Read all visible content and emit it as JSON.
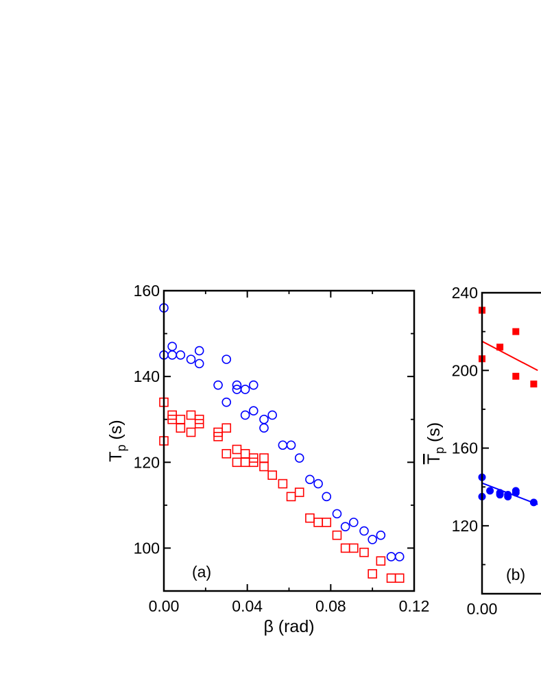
{
  "chart_data": [
    {
      "panel": "a",
      "type": "scatter",
      "panel_label": "(a)",
      "xlabel": "β (rad)",
      "ylabel_main": "T",
      "ylabel_sub": "p",
      "ylabel_unit": " (s)",
      "xlim": [
        0.0,
        0.12
      ],
      "ylim": [
        90,
        160
      ],
      "xticks": [
        "0.00",
        "0.04",
        "0.08",
        "0.12"
      ],
      "xtick_values": [
        0.0,
        0.04,
        0.08,
        0.12
      ],
      "yticks": [
        "100",
        "120",
        "140",
        "160"
      ],
      "ytick_values": [
        100,
        120,
        140,
        160
      ],
      "grid": false,
      "series": [
        {
          "marker": "open-circle",
          "color": "#0000ff",
          "points": [
            [
              0.0,
              156
            ],
            [
              0.0,
              145
            ],
            [
              0.004,
              147
            ],
            [
              0.004,
              145
            ],
            [
              0.008,
              145
            ],
            [
              0.013,
              144
            ],
            [
              0.017,
              146
            ],
            [
              0.017,
              143
            ],
            [
              0.026,
              138
            ],
            [
              0.03,
              144
            ],
            [
              0.03,
              134
            ],
            [
              0.035,
              138
            ],
            [
              0.035,
              137
            ],
            [
              0.039,
              137
            ],
            [
              0.039,
              131
            ],
            [
              0.043,
              138
            ],
            [
              0.043,
              132
            ],
            [
              0.048,
              130
            ],
            [
              0.048,
              128
            ],
            [
              0.052,
              131
            ],
            [
              0.057,
              124
            ],
            [
              0.061,
              124
            ],
            [
              0.065,
              121
            ],
            [
              0.07,
              116
            ],
            [
              0.074,
              115
            ],
            [
              0.078,
              112
            ],
            [
              0.083,
              108
            ],
            [
              0.087,
              105
            ],
            [
              0.091,
              106
            ],
            [
              0.096,
              104
            ],
            [
              0.1,
              102
            ],
            [
              0.104,
              103
            ],
            [
              0.109,
              98
            ],
            [
              0.113,
              98
            ]
          ]
        },
        {
          "marker": "open-square",
          "color": "#ff0000",
          "points": [
            [
              0.0,
              134
            ],
            [
              0.0,
              125
            ],
            [
              0.004,
              131
            ],
            [
              0.004,
              130
            ],
            [
              0.008,
              130
            ],
            [
              0.008,
              128
            ],
            [
              0.013,
              131
            ],
            [
              0.013,
              127
            ],
            [
              0.017,
              130
            ],
            [
              0.017,
              129
            ],
            [
              0.026,
              127
            ],
            [
              0.026,
              126
            ],
            [
              0.03,
              128
            ],
            [
              0.03,
              122
            ],
            [
              0.035,
              123
            ],
            [
              0.035,
              120
            ],
            [
              0.039,
              122
            ],
            [
              0.039,
              120
            ],
            [
              0.043,
              121
            ],
            [
              0.043,
              120
            ],
            [
              0.048,
              121
            ],
            [
              0.048,
              119
            ],
            [
              0.052,
              117
            ],
            [
              0.057,
              115
            ],
            [
              0.061,
              112
            ],
            [
              0.065,
              113
            ],
            [
              0.07,
              107
            ],
            [
              0.074,
              106
            ],
            [
              0.078,
              106
            ],
            [
              0.083,
              103
            ],
            [
              0.087,
              100
            ],
            [
              0.091,
              100
            ],
            [
              0.096,
              99
            ],
            [
              0.1,
              94
            ],
            [
              0.104,
              97
            ],
            [
              0.109,
              93
            ],
            [
              0.113,
              93
            ]
          ]
        }
      ]
    },
    {
      "panel": "b",
      "type": "scatter",
      "panel_label": "(b)",
      "ylabel_main": "T",
      "ylabel_sub": "p",
      "ylabel_unit": " (s)",
      "ylim": [
        85,
        240
      ],
      "xticks": [
        "0.00"
      ],
      "yticks": [
        "120",
        "160",
        "200",
        "240"
      ],
      "ytick_values": [
        120,
        160,
        200,
        240
      ],
      "grid": false,
      "series": [
        {
          "marker": "filled-square",
          "color": "#ff0000",
          "points": [
            [
              0.0,
              231
            ],
            [
              0.0,
              206
            ],
            [
              0.009,
              212
            ],
            [
              0.017,
              220
            ],
            [
              0.017,
              197
            ],
            [
              0.026,
              193
            ]
          ],
          "fit_line": [
            [
              0.0,
              215
            ],
            [
              0.028,
              200
            ]
          ]
        },
        {
          "marker": "filled-circle",
          "color": "#0000ff",
          "points": [
            [
              0.0,
              145
            ],
            [
              0.0,
              135
            ],
            [
              0.004,
              138
            ],
            [
              0.009,
              137
            ],
            [
              0.009,
              136
            ],
            [
              0.013,
              136
            ],
            [
              0.013,
              135
            ],
            [
              0.017,
              137
            ],
            [
              0.017,
              138
            ],
            [
              0.026,
              132
            ]
          ],
          "fit_line": [
            [
              0.0,
              142
            ],
            [
              0.028,
              131
            ]
          ]
        }
      ]
    }
  ]
}
